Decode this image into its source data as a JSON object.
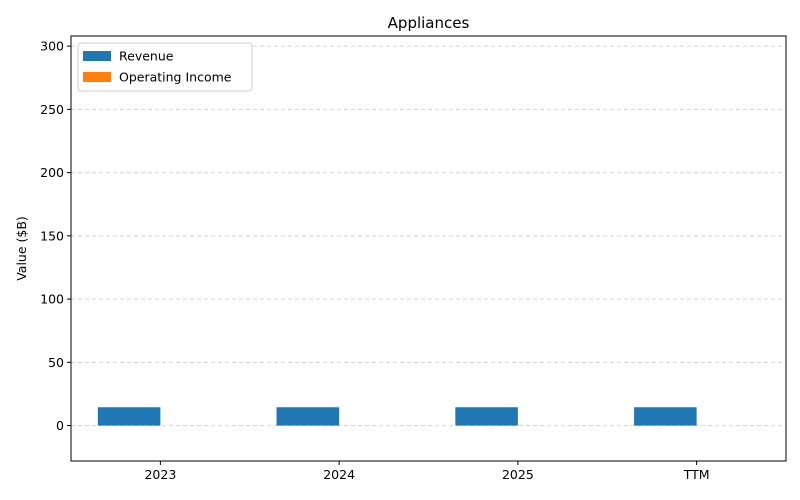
{
  "chart_data": {
    "type": "bar",
    "title": "Appliances",
    "xlabel": "",
    "ylabel": "Value ($B)",
    "categories": [
      "2023",
      "2024",
      "2025",
      "TTM"
    ],
    "series": [
      {
        "name": "Revenue",
        "color": "#1f77b4",
        "values": [
          14.5,
          14.5,
          14.5,
          14.5
        ]
      },
      {
        "name": "Operating Income",
        "color": "#ff7f0e",
        "values": [
          0.0,
          0.0,
          0.0,
          0.0
        ]
      }
    ],
    "ylim": [
      -28,
      308
    ],
    "yticks": [
      0,
      50,
      100,
      150,
      200,
      250,
      300
    ],
    "grid": "y-dashed",
    "legend_position": "top-left"
  }
}
